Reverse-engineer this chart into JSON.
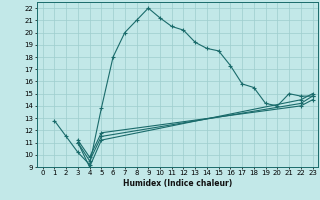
{
  "title": "",
  "xlabel": "Humidex (Indice chaleur)",
  "ylabel": "",
  "xlim": [
    -0.5,
    23.5
  ],
  "ylim": [
    9,
    22.5
  ],
  "xticks": [
    0,
    1,
    2,
    3,
    4,
    5,
    6,
    7,
    8,
    9,
    10,
    11,
    12,
    13,
    14,
    15,
    16,
    17,
    18,
    19,
    20,
    21,
    22,
    23
  ],
  "yticks": [
    9,
    10,
    11,
    12,
    13,
    14,
    15,
    16,
    17,
    18,
    19,
    20,
    21,
    22
  ],
  "bg_color": "#c2e8e8",
  "line_color": "#1a6b6b",
  "grid_color": "#9ecece",
  "lines": [
    {
      "x": [
        1,
        2,
        3,
        4,
        5,
        6,
        7,
        8,
        9,
        10,
        11,
        12,
        13,
        14,
        15,
        16,
        17,
        18,
        19,
        20,
        21,
        22,
        23
      ],
      "y": [
        12.8,
        11.5,
        10.2,
        9.2,
        13.8,
        18.0,
        20.0,
        21.0,
        22.0,
        21.2,
        20.5,
        20.2,
        19.2,
        18.7,
        18.5,
        17.3,
        15.8,
        15.5,
        14.2,
        14.0,
        15.0,
        14.8,
        14.8
      ]
    },
    {
      "x": [
        3,
        4,
        5,
        22,
        23
      ],
      "y": [
        11.0,
        9.0,
        11.2,
        14.5,
        15.0
      ]
    },
    {
      "x": [
        3,
        4,
        5,
        22,
        23
      ],
      "y": [
        11.0,
        9.5,
        11.5,
        14.2,
        14.8
      ]
    },
    {
      "x": [
        3,
        4,
        5,
        22,
        23
      ],
      "y": [
        11.2,
        9.8,
        11.8,
        14.0,
        14.5
      ]
    }
  ]
}
